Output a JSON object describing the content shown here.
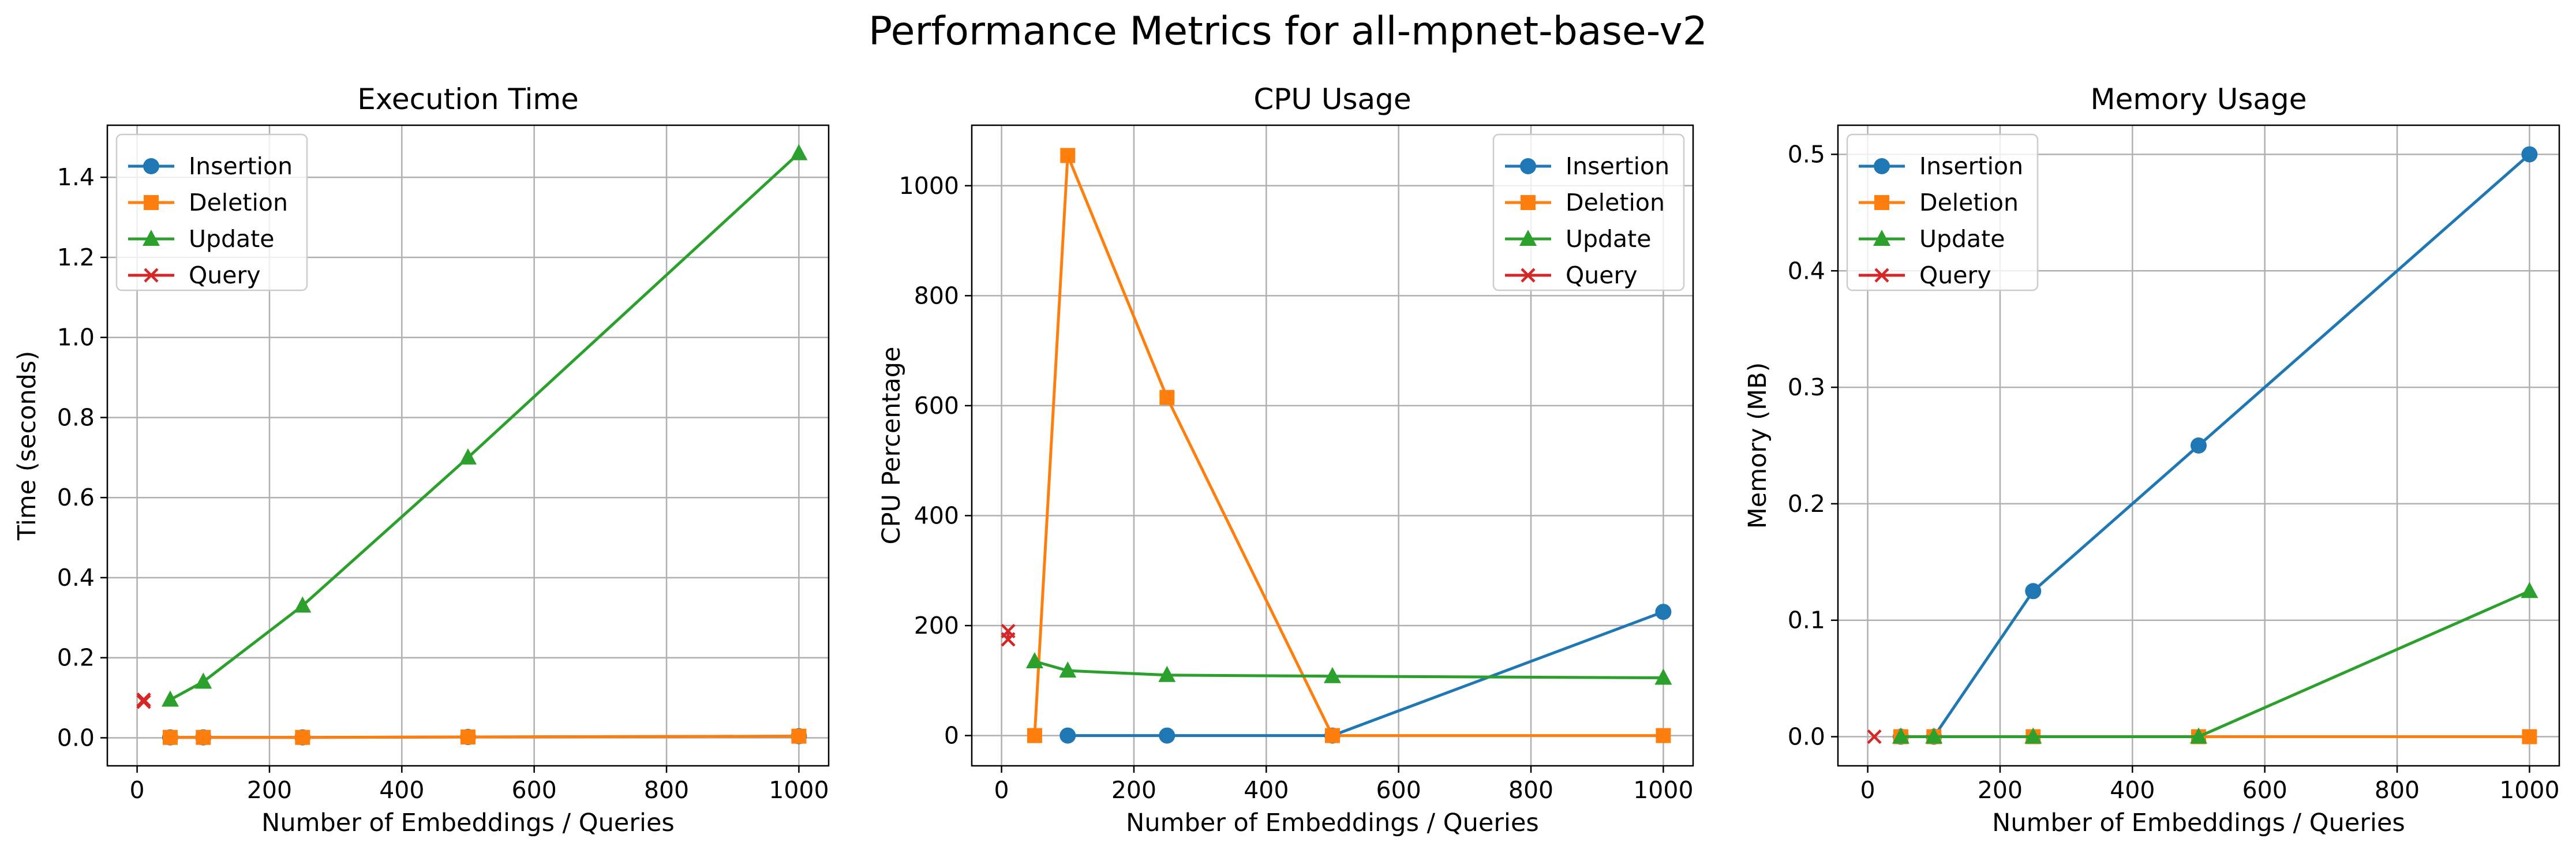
{
  "figure": {
    "suptitle": "Performance Metrics for all-mpnet-base-v2"
  },
  "colors": {
    "Insertion": "#1f77b4",
    "Deletion": "#ff7f0e",
    "Update": "#2ca02c",
    "Query": "#d62728"
  },
  "markers": {
    "Insertion": "circle",
    "Deletion": "square",
    "Update": "triangle",
    "Query": "x"
  },
  "chart_data": [
    {
      "type": "line",
      "title": "Execution Time",
      "xlabel": "Number of Embeddings / Queries",
      "ylabel": "Time (seconds)",
      "xlim": [
        -45,
        1045
      ],
      "ylim": [
        -0.07,
        1.53
      ],
      "xticks": [
        0,
        200,
        400,
        600,
        800,
        1000
      ],
      "yticks": [
        0.0,
        0.2,
        0.4,
        0.6,
        0.8,
        1.0,
        1.2,
        1.4
      ],
      "ytick_decimals": 1,
      "grid": true,
      "legend": "upper-left",
      "series": [
        {
          "name": "Insertion",
          "x": [
            50,
            100,
            250,
            500,
            1000
          ],
          "y": [
            0.001,
            0.001,
            0.001,
            0.002,
            0.004
          ]
        },
        {
          "name": "Deletion",
          "x": [
            50,
            100,
            250,
            500,
            1000
          ],
          "y": [
            0.001,
            0.001,
            0.001,
            0.002,
            0.004
          ]
        },
        {
          "name": "Update",
          "x": [
            50,
            100,
            250,
            500,
            1000
          ],
          "y": [
            0.095,
            0.14,
            0.33,
            0.7,
            1.46
          ]
        },
        {
          "name": "Query",
          "x": [
            10,
            10
          ],
          "y": [
            0.095,
            0.09
          ]
        }
      ]
    },
    {
      "type": "line",
      "title": "CPU Usage",
      "xlabel": "Number of Embeddings / Queries",
      "ylabel": "CPU Percentage",
      "xlim": [
        -45,
        1045
      ],
      "ylim": [
        -55,
        1110
      ],
      "xticks": [
        0,
        200,
        400,
        600,
        800,
        1000
      ],
      "yticks": [
        0,
        200,
        400,
        600,
        800,
        1000
      ],
      "ytick_decimals": 0,
      "grid": true,
      "legend": "upper-right",
      "series": [
        {
          "name": "Insertion",
          "x": [
            100,
            250,
            500,
            1000
          ],
          "y": [
            0,
            0,
            0,
            225
          ]
        },
        {
          "name": "Deletion",
          "x": [
            50,
            100,
            250,
            500,
            1000
          ],
          "y": [
            0,
            1055,
            615,
            0,
            0
          ]
        },
        {
          "name": "Update",
          "x": [
            50,
            100,
            250,
            500,
            1000
          ],
          "y": [
            135,
            118,
            110,
            108,
            105
          ]
        },
        {
          "name": "Query",
          "x": [
            10,
            10
          ],
          "y": [
            190,
            175
          ]
        }
      ]
    },
    {
      "type": "line",
      "title": "Memory Usage",
      "xlabel": "Number of Embeddings / Queries",
      "ylabel": "Memory (MB)",
      "xlim": [
        -45,
        1045
      ],
      "ylim": [
        -0.025,
        0.525
      ],
      "xticks": [
        0,
        200,
        400,
        600,
        800,
        1000
      ],
      "yticks": [
        0.0,
        0.1,
        0.2,
        0.3,
        0.4,
        0.5
      ],
      "ytick_decimals": 1,
      "grid": true,
      "legend": "upper-left",
      "series": [
        {
          "name": "Insertion",
          "x": [
            50,
            100,
            250,
            500,
            1000
          ],
          "y": [
            0,
            0,
            0.125,
            0.25,
            0.5
          ]
        },
        {
          "name": "Deletion",
          "x": [
            50,
            100,
            250,
            500,
            1000
          ],
          "y": [
            0,
            0,
            0,
            0,
            0
          ]
        },
        {
          "name": "Update",
          "x": [
            50,
            100,
            250,
            500,
            1000
          ],
          "y": [
            0,
            0,
            0,
            0,
            0.125
          ]
        },
        {
          "name": "Query",
          "x": [
            10
          ],
          "y": [
            0
          ]
        }
      ]
    }
  ]
}
